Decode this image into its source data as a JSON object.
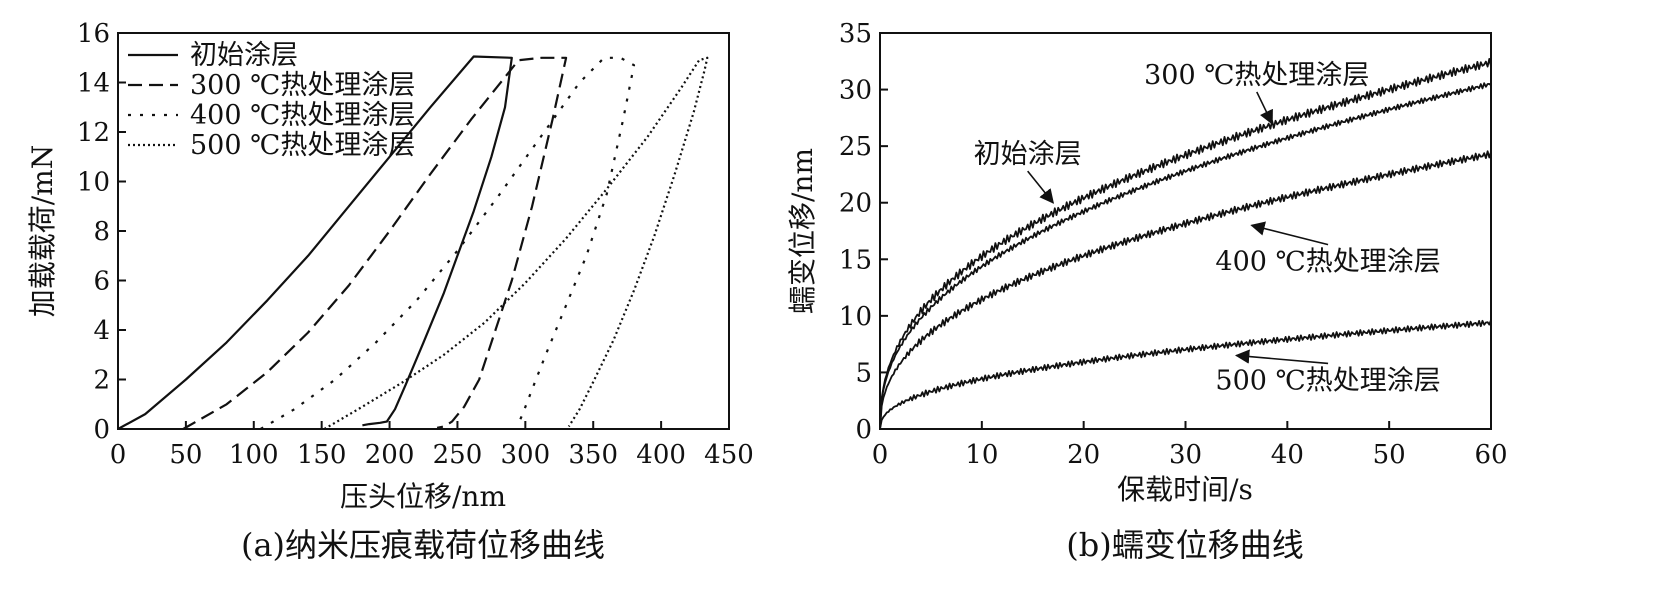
{
  "chart_data": [
    {
      "type": "line",
      "caption": "(a)纳米压痕载荷位移曲线",
      "xlabel": "压头位移/nm",
      "ylabel": "加载载荷/mN",
      "xlim": [
        0,
        450
      ],
      "ylim": [
        0,
        16
      ],
      "xticks": [
        0,
        50,
        100,
        150,
        200,
        250,
        300,
        350,
        400,
        450
      ],
      "yticks": [
        0,
        2,
        4,
        6,
        8,
        10,
        12,
        14,
        16
      ],
      "legend_position": "top-left",
      "grid": false,
      "series": [
        {
          "name": "初始涂层",
          "style": "solid",
          "x": [
            0,
            20,
            50,
            80,
            110,
            140,
            170,
            200,
            230,
            262,
            290,
            285,
            275,
            262,
            250,
            240,
            225,
            212,
            204,
            198,
            193,
            185,
            180
          ],
          "y": [
            0,
            0.6,
            2.0,
            3.5,
            5.2,
            7.0,
            9.0,
            11.0,
            13.0,
            15.05,
            15.0,
            13.0,
            11.0,
            8.8,
            7.0,
            5.5,
            3.5,
            1.8,
            0.8,
            0.3,
            0.25,
            0.2,
            0.15
          ]
        },
        {
          "name": "300 ℃热处理涂层",
          "style": "dashed",
          "x": [
            48,
            80,
            110,
            140,
            170,
            200,
            230,
            260,
            295,
            312,
            330,
            320,
            305,
            290,
            278,
            266,
            255,
            246,
            240,
            235
          ],
          "y": [
            0,
            1.0,
            2.3,
            3.9,
            5.8,
            8.0,
            10.3,
            12.5,
            14.9,
            15.0,
            15.0,
            12.5,
            9.0,
            6.0,
            4.0,
            2.0,
            0.9,
            0.3,
            0.1,
            0.05
          ]
        },
        {
          "name": "400 ℃热处理涂层",
          "style": "dotted",
          "x": [
            105,
            130,
            160,
            190,
            220,
            250,
            280,
            310,
            340,
            358,
            370,
            380,
            372,
            360,
            345,
            330,
            315,
            305,
            298,
            294
          ],
          "y": [
            0,
            0.8,
            2.0,
            3.5,
            5.2,
            7.2,
            9.4,
            11.7,
            14.0,
            15.0,
            15.0,
            14.7,
            12.5,
            9.5,
            7.0,
            5.0,
            3.0,
            1.6,
            0.6,
            0.1
          ]
        },
        {
          "name": "500 ℃热处理涂层",
          "style": "densely-dotted",
          "x": [
            152,
            180,
            210,
            240,
            270,
            300,
            330,
            360,
            390,
            415,
            428,
            434,
            432,
            424,
            410,
            395,
            380,
            365,
            350,
            340,
            332
          ],
          "y": [
            0,
            0.9,
            1.9,
            3.0,
            4.3,
            5.9,
            7.7,
            9.7,
            11.8,
            13.8,
            14.9,
            15.0,
            14.5,
            12.8,
            10.3,
            7.8,
            5.6,
            3.6,
            1.9,
            0.8,
            0.1
          ]
        }
      ]
    },
    {
      "type": "line",
      "caption": "(b)蠕变位移曲线",
      "xlabel": "保载时间/s",
      "ylabel": "蠕变位移/nm",
      "xlim": [
        0,
        60
      ],
      "ylim": [
        0,
        35
      ],
      "xticks": [
        0,
        10,
        20,
        30,
        40,
        50,
        60
      ],
      "yticks": [
        0,
        5,
        10,
        15,
        20,
        25,
        30,
        35
      ],
      "grid": false,
      "series": [
        {
          "name": "300 ℃热处理涂层",
          "final": 32.4,
          "noise": 0.35
        },
        {
          "name": "初始涂层",
          "final": 30.5,
          "noise": 0.22
        },
        {
          "name": "400 ℃热处理涂层",
          "final": 24.3,
          "noise": 0.3
        },
        {
          "name": "500 ℃热处理涂层",
          "final": 9.4,
          "noise": 0.25
        }
      ],
      "annotations": [
        {
          "text": "300 ℃热处理涂层",
          "x": 37,
          "y": 30.5,
          "target_x": 38.5,
          "target_y": 27.0
        },
        {
          "text": "初始涂层",
          "x": 14.5,
          "y": 23.5,
          "target_x": 17.0,
          "target_y": 20.0
        },
        {
          "text": "400 ℃热处理涂层",
          "x": 44,
          "y": 14.0,
          "target_x": 36.5,
          "target_y": 18.0
        },
        {
          "text": "500 ℃热处理涂层",
          "x": 44,
          "y": 3.5,
          "target_x": 35.0,
          "target_y": 6.5
        }
      ]
    }
  ]
}
